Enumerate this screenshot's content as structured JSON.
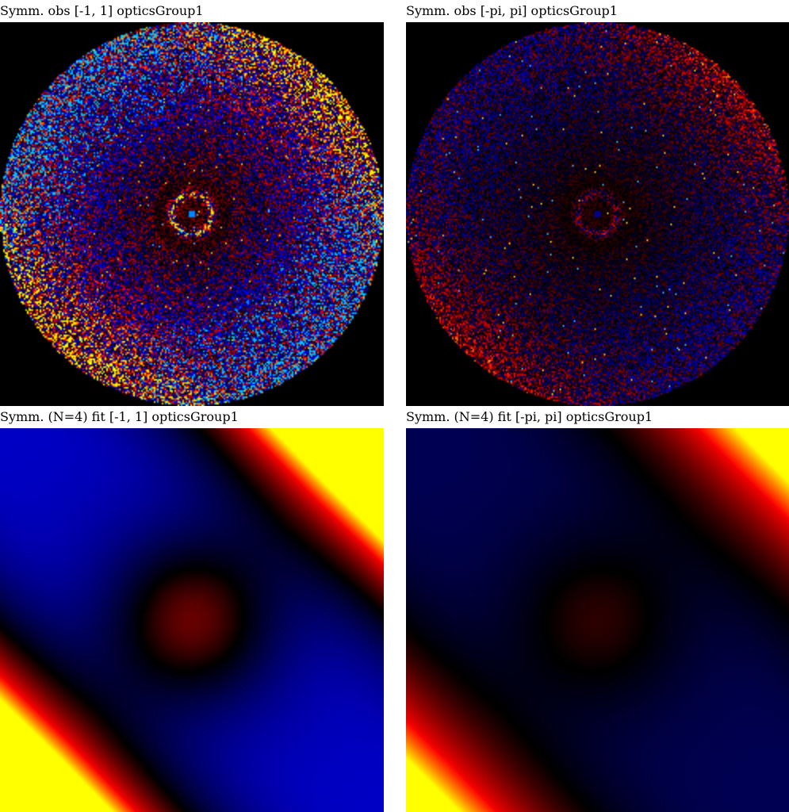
{
  "panels": [
    {
      "title": "Symm. obs [-1, 1] opticsGroup1",
      "kind": "observed",
      "scale": "narrow"
    },
    {
      "title": "Symm. obs [-pi, pi] opticsGroup1",
      "kind": "observed",
      "scale": "wide"
    },
    {
      "title": "Symm. (N=4) fit [-1, 1] opticsGroup1",
      "kind": "fit",
      "scale": "narrow"
    },
    {
      "title": "Symm. (N=4) fit [-pi, pi] opticsGroup1",
      "kind": "fit",
      "scale": "wide"
    }
  ],
  "colormap": {
    "low": "#0000ff",
    "mid": "#000000",
    "high": "#ff0000",
    "top": "#ffff00"
  }
}
